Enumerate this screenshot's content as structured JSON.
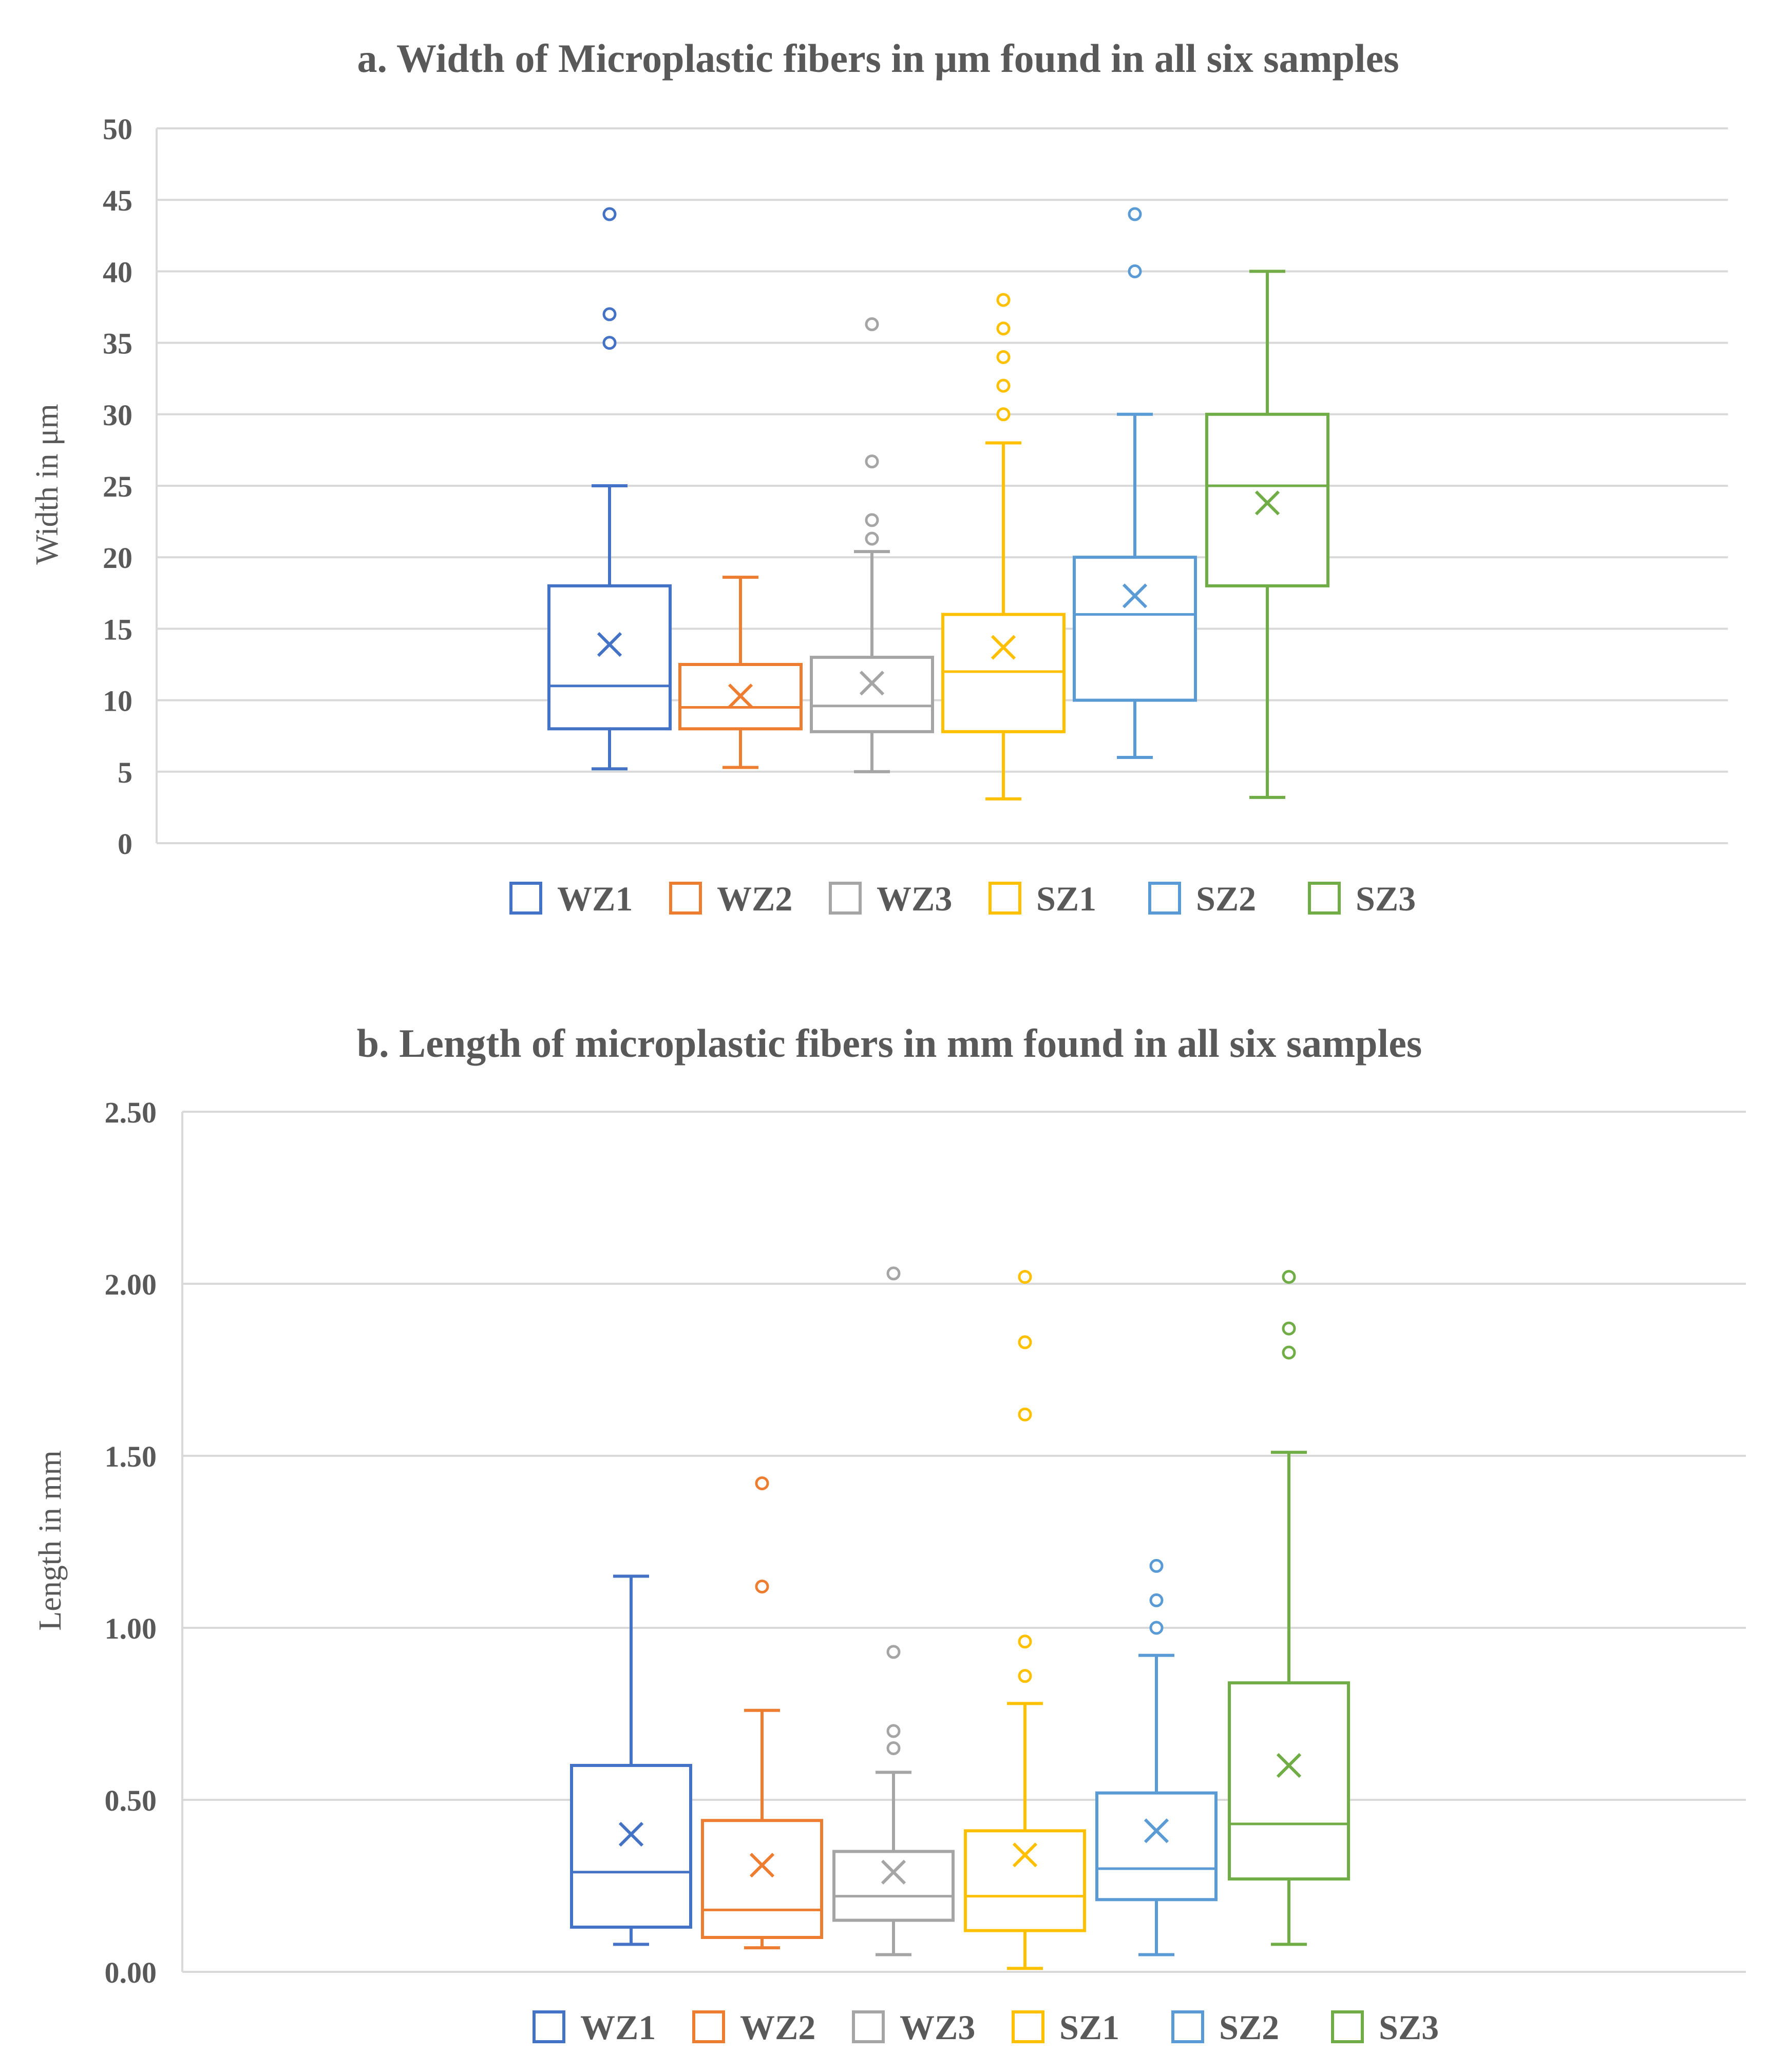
{
  "colors": {
    "WZ1": "#4472C4",
    "WZ2": "#ED7D31",
    "WZ3": "#A5A5A5",
    "SZ1": "#FFC000",
    "SZ2": "#5B9BD5",
    "SZ3": "#70AD47",
    "grid": "#D9D9D9",
    "text": "#595959"
  },
  "chart_data": [
    {
      "type": "box",
      "title": "a. Width of Microplastic fibers in μm found in all six samples",
      "xlabel": "",
      "ylabel": "Width in μm",
      "ylim": [
        0,
        50
      ],
      "yticks": [
        0,
        5,
        10,
        15,
        20,
        25,
        30,
        35,
        40,
        45,
        50
      ],
      "ytick_labels": [
        "0",
        "5",
        "10",
        "15",
        "20",
        "25",
        "30",
        "35",
        "40",
        "45",
        "50"
      ],
      "grid": true,
      "legend_position": "bottom",
      "series": [
        {
          "name": "WZ1",
          "min": 5.2,
          "q1": 8,
          "median": 11,
          "q3": 18,
          "max": 25,
          "mean": 13.9,
          "outliers": [
            35,
            37,
            44
          ]
        },
        {
          "name": "WZ2",
          "min": 5.3,
          "q1": 8,
          "median": 9.5,
          "q3": 12.5,
          "max": 18.6,
          "mean": 10.3,
          "outliers": []
        },
        {
          "name": "WZ3",
          "min": 5,
          "q1": 7.8,
          "median": 9.6,
          "q3": 13,
          "max": 20.4,
          "mean": 11.2,
          "outliers": [
            21.3,
            22.6,
            26.7,
            36.3
          ]
        },
        {
          "name": "SZ1",
          "min": 3.1,
          "q1": 7.8,
          "median": 12,
          "q3": 16,
          "max": 28,
          "mean": 13.7,
          "outliers": [
            30,
            32,
            34,
            36,
            38
          ]
        },
        {
          "name": "SZ2",
          "min": 6,
          "q1": 10,
          "median": 16,
          "q3": 20,
          "max": 30,
          "mean": 17.3,
          "outliers": [
            40,
            44
          ]
        },
        {
          "name": "SZ3",
          "min": 3.2,
          "q1": 18,
          "median": 25,
          "q3": 30,
          "max": 40,
          "mean": 23.8,
          "outliers": []
        }
      ]
    },
    {
      "type": "box",
      "title": "b. Length of microplastic fibers in mm found in all six samples",
      "xlabel": "",
      "ylabel": "Length in mm",
      "ylim": [
        0,
        2.5
      ],
      "yticks": [
        0,
        0.5,
        1,
        1.5,
        2,
        2.5
      ],
      "ytick_labels": [
        "0.00",
        "0.50",
        "1.00",
        "1.50",
        "2.00",
        "2.50"
      ],
      "grid": true,
      "legend_position": "bottom",
      "series": [
        {
          "name": "WZ1",
          "min": 0.08,
          "q1": 0.13,
          "median": 0.29,
          "q3": 0.6,
          "max": 1.15,
          "mean": 0.4,
          "outliers": []
        },
        {
          "name": "WZ2",
          "min": 0.07,
          "q1": 0.1,
          "median": 0.18,
          "q3": 0.44,
          "max": 0.76,
          "mean": 0.31,
          "outliers": [
            1.12,
            1.42
          ]
        },
        {
          "name": "WZ3",
          "min": 0.05,
          "q1": 0.15,
          "median": 0.22,
          "q3": 0.35,
          "max": 0.58,
          "mean": 0.29,
          "outliers": [
            0.65,
            0.7,
            0.93,
            2.03
          ]
        },
        {
          "name": "SZ1",
          "min": 0.01,
          "q1": 0.12,
          "median": 0.22,
          "q3": 0.41,
          "max": 0.78,
          "mean": 0.34,
          "outliers": [
            0.86,
            0.96,
            1.62,
            1.83,
            2.02
          ]
        },
        {
          "name": "SZ2",
          "min": 0.05,
          "q1": 0.21,
          "median": 0.3,
          "q3": 0.52,
          "max": 0.92,
          "mean": 0.41,
          "outliers": [
            1.0,
            1.08,
            1.18
          ]
        },
        {
          "name": "SZ3",
          "min": 0.08,
          "q1": 0.27,
          "median": 0.43,
          "q3": 0.84,
          "max": 1.51,
          "mean": 0.6,
          "outliers": [
            1.8,
            1.87,
            2.02
          ]
        }
      ]
    }
  ]
}
